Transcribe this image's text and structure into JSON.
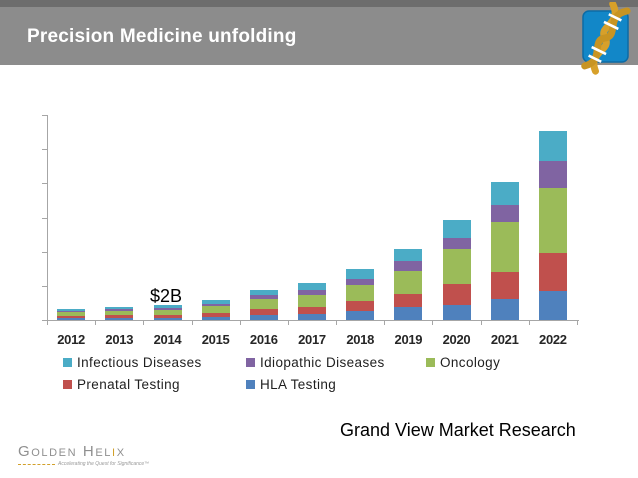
{
  "header": {
    "title": "Precision Medicine unfolding"
  },
  "chart_data": {
    "type": "bar",
    "stacked": true,
    "unit": "$B",
    "categories": [
      "2012",
      "2013",
      "2014",
      "2015",
      "2016",
      "2017",
      "2018",
      "2019",
      "2020",
      "2021",
      "2022"
    ],
    "series": [
      {
        "name": "HLA Testing",
        "color": "#4F81BD",
        "values": [
          0.28,
          0.3,
          0.34,
          0.47,
          0.68,
          0.87,
          1.25,
          1.85,
          2.25,
          3.1,
          4.2
        ]
      },
      {
        "name": "Prenatal Testing",
        "color": "#C0504D",
        "values": [
          0.34,
          0.37,
          0.42,
          0.58,
          0.84,
          1.07,
          1.45,
          1.95,
          3.0,
          3.9,
          5.6
        ]
      },
      {
        "name": "Oncology",
        "color": "#9BBB59",
        "values": [
          0.55,
          0.6,
          0.7,
          0.97,
          1.4,
          1.8,
          2.3,
          3.4,
          5.1,
          7.25,
          9.5
        ]
      },
      {
        "name": "Idiopathic Diseases",
        "color": "#8064A2",
        "values": [
          0.2,
          0.22,
          0.26,
          0.36,
          0.52,
          0.66,
          0.85,
          1.45,
          1.6,
          2.45,
          4.0
        ]
      },
      {
        "name": "Infectious Diseases",
        "color": "#4BACC6",
        "values": [
          0.31,
          0.34,
          0.4,
          0.55,
          0.8,
          1.02,
          1.45,
          1.7,
          2.7,
          3.4,
          4.4
        ]
      }
    ],
    "ylim": [
      0,
      30
    ],
    "ytick_step": 5,
    "y_tick_labels_visible": false,
    "grid": false,
    "legend_position": "bottom",
    "annotation": {
      "text": "$2B",
      "category": "2014"
    }
  },
  "footer": {
    "source": "Grand View Market Research",
    "logo_text": "Golden Helix",
    "logo_tagline": "Accelerating the Quest for Significance™"
  },
  "brand_colors": {
    "header_gray": "#8c8c8c",
    "header_gray_dark": "#6d6d6d",
    "logo_blue": "#1287c8",
    "logo_gold": "#d7a02a"
  }
}
